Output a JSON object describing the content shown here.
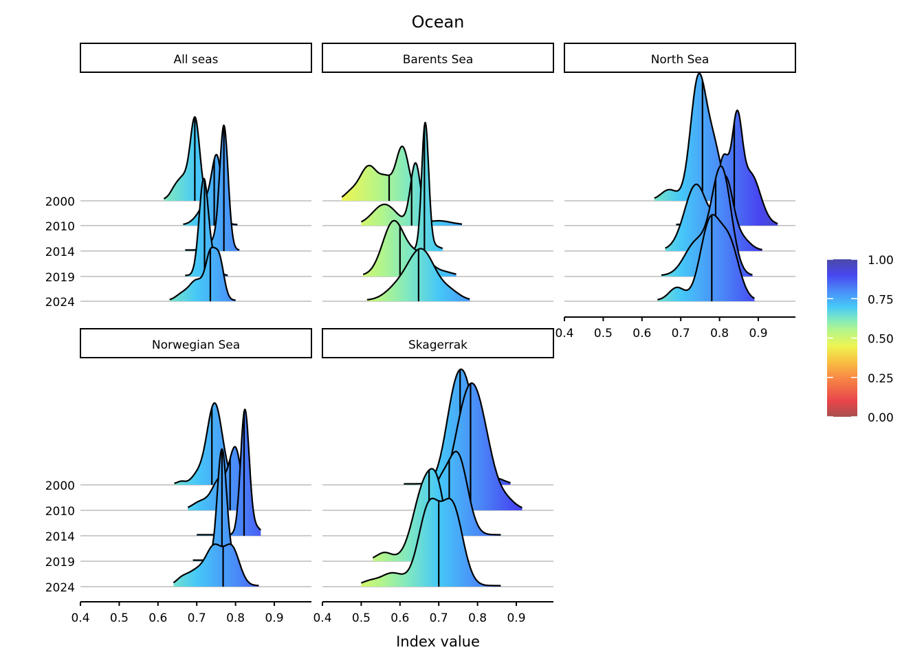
{
  "chart_data": {
    "type": "ridgeline",
    "title": "Ocean",
    "xlabel": "Index value",
    "ylabel": "",
    "x_ticks": [
      0.4,
      0.5,
      0.6,
      0.7,
      0.8,
      0.9
    ],
    "xlim": [
      0.4,
      1.0
    ],
    "y_categories": [
      "2000",
      "2010",
      "2014",
      "2019",
      "2024"
    ],
    "grid": "horizontal at each year",
    "fill": "gradient by index value",
    "legend": {
      "position": "right",
      "type": "colorbar",
      "ticks": [
        "0.00",
        "0.25",
        "0.50",
        "0.75",
        "1.00"
      ],
      "range": [
        0,
        1
      ],
      "palette": [
        [
          0.0,
          "#a84f4f"
        ],
        [
          0.1,
          "#e8454a"
        ],
        [
          0.25,
          "#f98a45"
        ],
        [
          0.35,
          "#f8c040"
        ],
        [
          0.45,
          "#eef553"
        ],
        [
          0.55,
          "#b4f58a"
        ],
        [
          0.62,
          "#80e8c0"
        ],
        [
          0.7,
          "#46c8f8"
        ],
        [
          0.8,
          "#4a8cf8"
        ],
        [
          0.9,
          "#4846f0"
        ],
        [
          1.0,
          "#4a4aa8"
        ]
      ]
    },
    "facets": [
      {
        "name": "All seas",
        "ridges": [
          {
            "year": "2000",
            "range": [
              0.615,
              0.77
            ],
            "median": 0.695,
            "components": [
              [
                0.696,
                0.012,
                3.0
              ],
              [
                0.665,
                0.02,
                0.9
              ],
              [
                0.64,
                0.01,
                0.1
              ]
            ]
          },
          {
            "year": "2010",
            "range": [
              0.665,
              0.805
            ],
            "median": 0.745,
            "components": [
              [
                0.752,
                0.013,
                2.6
              ],
              [
                0.725,
                0.015,
                0.8
              ],
              [
                0.7,
                0.015,
                0.2
              ]
            ]
          },
          {
            "year": "2014",
            "range": [
              0.67,
              0.81
            ],
            "median": 0.77,
            "components": [
              [
                0.77,
                0.011,
                4.9
              ],
              [
                0.74,
                0.015,
                0.3
              ]
            ]
          },
          {
            "year": "2019",
            "range": [
              0.67,
              0.78
            ],
            "median": 0.72,
            "components": [
              [
                0.718,
                0.012,
                3.8
              ],
              [
                0.745,
                0.012,
                0.5
              ]
            ]
          },
          {
            "year": "2024",
            "range": [
              0.63,
              0.8
            ],
            "median": 0.735,
            "components": [
              [
                0.735,
                0.012,
                1.6
              ],
              [
                0.758,
                0.012,
                1.6
              ],
              [
                0.7,
                0.02,
                0.8
              ],
              [
                0.66,
                0.015,
                0.2
              ]
            ]
          }
        ]
      },
      {
        "name": "Barents Sea",
        "ridges": [
          {
            "year": "2000",
            "range": [
              0.45,
              0.64
            ],
            "median": 0.572,
            "components": [
              [
                0.52,
                0.025,
                1.35
              ],
              [
                0.606,
                0.017,
                2.1
              ],
              [
                0.565,
                0.015,
                0.6
              ],
              [
                0.47,
                0.015,
                0.2
              ]
            ]
          },
          {
            "year": "2010",
            "range": [
              0.5,
              0.76
            ],
            "median": 0.63,
            "components": [
              [
                0.64,
                0.013,
                2.4
              ],
              [
                0.56,
                0.03,
                0.8
              ],
              [
                0.7,
                0.03,
                0.15
              ]
            ]
          },
          {
            "year": "2014",
            "range": [
              0.6,
              0.71
            ],
            "median": 0.663,
            "components": [
              [
                0.665,
                0.009,
                4.9
              ],
              [
                0.68,
                0.02,
                0.2
              ]
            ]
          },
          {
            "year": "2019",
            "range": [
              0.505,
              0.745
            ],
            "median": 0.6,
            "components": [
              [
                0.583,
                0.028,
                2.1
              ],
              [
                0.65,
                0.03,
                0.8
              ],
              [
                0.72,
                0.02,
                0.1
              ]
            ]
          },
          {
            "year": "2024",
            "range": [
              0.515,
              0.78
            ],
            "median": 0.648,
            "components": [
              [
                0.655,
                0.035,
                2.0
              ],
              [
                0.59,
                0.03,
                0.4
              ],
              [
                0.73,
                0.025,
                0.3
              ]
            ]
          }
        ]
      },
      {
        "name": "North Sea",
        "ridges": [
          {
            "year": "2000",
            "range": [
              0.632,
              0.84
            ],
            "median": 0.756,
            "components": [
              [
                0.745,
                0.02,
                4.7
              ],
              [
                0.785,
                0.02,
                2.0
              ],
              [
                0.67,
                0.02,
                0.4
              ]
            ]
          },
          {
            "year": "2010",
            "range": [
              0.688,
              0.95
            ],
            "median": 0.838,
            "components": [
              [
                0.81,
                0.015,
                2.6
              ],
              [
                0.845,
                0.013,
                3.6
              ],
              [
                0.88,
                0.025,
                2.0
              ],
              [
                0.76,
                0.02,
                0.5
              ]
            ]
          },
          {
            "year": "2014",
            "range": [
              0.66,
              0.91
            ],
            "median": 0.788,
            "components": [
              [
                0.74,
                0.03,
                2.6
              ],
              [
                0.815,
                0.02,
                2.8
              ],
              [
                0.86,
                0.02,
                0.4
              ]
            ]
          },
          {
            "year": "2019",
            "range": [
              0.65,
              0.885
            ],
            "median": 0.79,
            "components": [
              [
                0.805,
                0.025,
                4.2
              ],
              [
                0.74,
                0.03,
                1.3
              ]
            ]
          },
          {
            "year": "2024",
            "range": [
              0.64,
              0.89
            ],
            "median": 0.78,
            "components": [
              [
                0.775,
                0.025,
                3.0
              ],
              [
                0.825,
                0.025,
                2.2
              ],
              [
                0.69,
                0.02,
                0.5
              ]
            ]
          }
        ]
      },
      {
        "name": "Norwegian Sea",
        "ridges": [
          {
            "year": "2000",
            "range": [
              0.642,
              0.8
            ],
            "median": 0.739,
            "components": [
              [
                0.746,
                0.02,
                3.2
              ],
              [
                0.7,
                0.015,
                0.3
              ],
              [
                0.66,
                0.01,
                0.1
              ]
            ]
          },
          {
            "year": "2010",
            "range": [
              0.677,
              0.82
            ],
            "median": 0.786,
            "components": [
              [
                0.8,
                0.015,
                2.3
              ],
              [
                0.76,
                0.02,
                1.2
              ],
              [
                0.71,
                0.02,
                0.3
              ]
            ]
          },
          {
            "year": "2014",
            "range": [
              0.7,
              0.865
            ],
            "median": 0.822,
            "components": [
              [
                0.824,
                0.011,
                4.9
              ],
              [
                0.85,
                0.015,
                0.3
              ]
            ]
          },
          {
            "year": "2019",
            "range": [
              0.69,
              0.8
            ],
            "median": 0.765,
            "components": [
              [
                0.765,
                0.012,
                4.4
              ]
            ]
          },
          {
            "year": "2024",
            "range": [
              0.64,
              0.86
            ],
            "median": 0.768,
            "components": [
              [
                0.745,
                0.02,
                1.4
              ],
              [
                0.79,
                0.02,
                1.5
              ],
              [
                0.7,
                0.025,
                0.6
              ],
              [
                0.66,
                0.015,
                0.2
              ]
            ]
          }
        ]
      },
      {
        "name": "Skagerrak",
        "ridges": [
          {
            "year": "2000",
            "range": [
              0.61,
              0.885
            ],
            "median": 0.755,
            "components": [
              [
                0.74,
                0.025,
                2.9
              ],
              [
                0.775,
                0.025,
                2.9
              ],
              [
                0.85,
                0.02,
                0.2
              ]
            ]
          },
          {
            "year": "2010",
            "range": [
              0.64,
              0.915
            ],
            "median": 0.782,
            "components": [
              [
                0.785,
                0.04,
                5.0
              ],
              [
                0.88,
                0.02,
                0.2
              ]
            ]
          },
          {
            "year": "2014",
            "range": [
              0.62,
              0.86
            ],
            "median": 0.727,
            "components": [
              [
                0.75,
                0.025,
                3.0
              ],
              [
                0.7,
                0.025,
                1.8
              ]
            ]
          },
          {
            "year": "2019",
            "range": [
              0.53,
              0.74
            ],
            "median": 0.675,
            "components": [
              [
                0.665,
                0.03,
                3.0
              ],
              [
                0.7,
                0.02,
                1.6
              ],
              [
                0.56,
                0.02,
                0.3
              ]
            ]
          },
          {
            "year": "2024",
            "range": [
              0.5,
              0.86
            ],
            "median": 0.7,
            "components": [
              [
                0.675,
                0.027,
                3.1
              ],
              [
                0.735,
                0.027,
                3.1
              ],
              [
                0.58,
                0.03,
                0.5
              ],
              [
                0.52,
                0.02,
                0.15
              ]
            ]
          }
        ]
      }
    ]
  }
}
